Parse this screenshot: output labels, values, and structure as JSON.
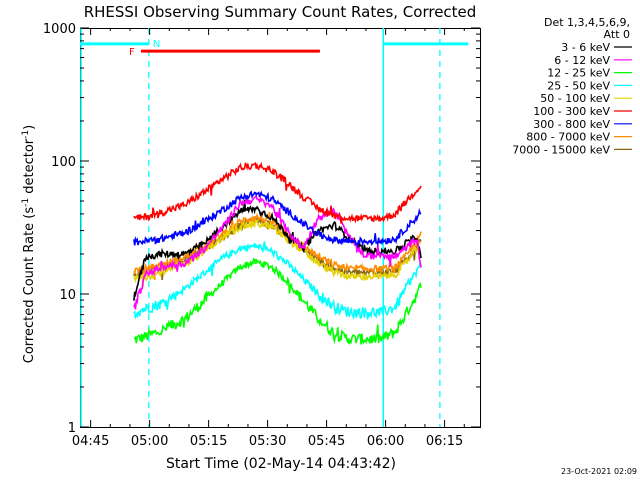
{
  "chart_data": {
    "type": "line",
    "title": "RHESSI Observing Summary Count Rates, Corrected",
    "xlabel": "Start Time (02-May-14 04:43:42)",
    "ylabel": "Corrected Count Rate (s",
    "ylabel_sup1": "-1",
    "ylabel_mid": " detector",
    "ylabel_sup2": "-1",
    "ylabel_end": ")",
    "y_scale": "log",
    "ylim": [
      1,
      1000
    ],
    "xlim_minutes_after_0445": [
      -2.7,
      99
    ],
    "x_ticks": [
      {
        "m": 0,
        "label": "04:45"
      },
      {
        "m": 15,
        "label": "05:00"
      },
      {
        "m": 30,
        "label": "05:15"
      },
      {
        "m": 45,
        "label": "05:30"
      },
      {
        "m": 60,
        "label": "05:45"
      },
      {
        "m": 75,
        "label": "06:00"
      },
      {
        "m": 90,
        "label": "06:15"
      }
    ],
    "y_ticks": [
      {
        "v": 1,
        "label": "1"
      },
      {
        "v": 10,
        "label": "10"
      },
      {
        "v": 100,
        "label": "100"
      },
      {
        "v": 1000,
        "label": "1000"
      }
    ],
    "legend_header": [
      "Det 1,3,4,5,6,9,",
      "Att 0"
    ],
    "legend_placement": "right",
    "series": [
      {
        "name": "3 - 6 keV",
        "color": "#000000",
        "x": [
          11,
          14,
          18,
          24,
          29,
          34,
          38,
          42,
          46,
          50,
          54,
          58,
          62,
          66,
          70,
          74,
          77.5,
          80,
          83,
          84
        ],
        "y": [
          9.5,
          19,
          20,
          20,
          24,
          33,
          42,
          44,
          38,
          28,
          22,
          30,
          33,
          26,
          21,
          21,
          21,
          24,
          27,
          18
        ]
      },
      {
        "name": "6 - 12 keV",
        "color": "#ff00ff",
        "x": [
          11,
          14,
          18,
          24,
          29,
          34,
          38,
          42,
          46,
          50,
          54,
          58,
          62,
          66,
          70,
          74,
          77.5,
          80,
          83,
          84
        ],
        "y": [
          7.5,
          14,
          16,
          17,
          22,
          33,
          48,
          52,
          46,
          30,
          22,
          38,
          42,
          26,
          19,
          20,
          19,
          22,
          26,
          16
        ]
      },
      {
        "name": "12 - 25 keV",
        "color": "#00ff00",
        "x": [
          11,
          14,
          18,
          24,
          29,
          34,
          38,
          42,
          46,
          50,
          54,
          58,
          62,
          66,
          70,
          74,
          77.5,
          80,
          83,
          84
        ],
        "y": [
          4.5,
          4.8,
          5.3,
          6.5,
          9.0,
          12.5,
          16,
          17.5,
          16,
          12.5,
          9.0,
          6.5,
          5.0,
          4.6,
          4.6,
          4.6,
          5.2,
          7,
          10,
          12
        ]
      },
      {
        "name": "25 - 50 keV",
        "color": "#00ffff",
        "x": [
          11,
          14,
          18,
          24,
          29,
          34,
          38,
          42,
          46,
          50,
          54,
          58,
          62,
          66,
          70,
          74,
          77.5,
          80,
          83,
          84
        ],
        "y": [
          7.2,
          7.8,
          8.5,
          11,
          14.5,
          19,
          22,
          23,
          21,
          17,
          13,
          10,
          8.0,
          7.3,
          7.3,
          7.3,
          8,
          11,
          15,
          17
        ]
      },
      {
        "name": "50 - 100 keV",
        "color": "#e6d200",
        "x": [
          11,
          14,
          18,
          24,
          29,
          34,
          38,
          42,
          46,
          50,
          54,
          58,
          62,
          66,
          70,
          74,
          77.5,
          80,
          83,
          84
        ],
        "y": [
          13,
          13.5,
          14.5,
          17,
          21,
          27,
          32,
          34,
          32,
          26,
          21,
          17,
          14.5,
          13.5,
          13.5,
          13.5,
          14,
          17,
          22,
          24
        ]
      },
      {
        "name": "100 - 300 keV",
        "color": "#ff0000",
        "x": [
          11,
          14,
          18,
          24,
          29,
          34,
          38,
          42,
          46,
          50,
          54,
          58,
          62,
          66,
          70,
          74,
          77.5,
          80,
          83,
          84
        ],
        "y": [
          37,
          38,
          41,
          47,
          59,
          75,
          89,
          93,
          85,
          69,
          54,
          44,
          39,
          37,
          37,
          37,
          40,
          49,
          61,
          66
        ]
      },
      {
        "name": "300 - 800 keV",
        "color": "#0000ff",
        "x": [
          11,
          14,
          18,
          24,
          29,
          34,
          38,
          42,
          46,
          50,
          54,
          58,
          62,
          66,
          70,
          74,
          77.5,
          80,
          83,
          84
        ],
        "y": [
          24.5,
          25,
          26,
          29,
          35,
          44,
          53,
          57,
          52,
          42,
          34,
          28,
          25.5,
          25,
          25,
          25,
          26,
          31,
          38,
          42
        ]
      },
      {
        "name": "800 - 7000 keV",
        "color": "#ff8c00",
        "x": [
          11,
          14,
          18,
          24,
          29,
          34,
          38,
          42,
          46,
          50,
          54,
          58,
          62,
          66,
          70,
          74,
          77.5,
          80,
          83,
          84
        ],
        "y": [
          15,
          15.5,
          16.5,
          19,
          23,
          29,
          35,
          38,
          35,
          29,
          23,
          19,
          16.5,
          15.5,
          15.5,
          15.5,
          16,
          19,
          25,
          28
        ]
      },
      {
        "name": "7000 - 15000 keV",
        "color": "#8b6914",
        "x": [
          11,
          14,
          18,
          24,
          29,
          34,
          38,
          42,
          46,
          50,
          54,
          58,
          62,
          66,
          70,
          74,
          77.5,
          80,
          83,
          84
        ],
        "y": [
          14,
          14.5,
          15.5,
          18,
          22,
          27,
          33,
          36,
          33,
          27,
          22,
          18,
          15.5,
          14.5,
          14.5,
          14.5,
          15,
          18,
          23,
          26
        ]
      }
    ],
    "annotations": {
      "night_label": "N",
      "night_color": "#00ffff",
      "night_start": 74.4,
      "night_end_prev": 14.8,
      "night_dashed_lines": [
        14.8,
        88.8
      ],
      "flare_label": "F",
      "flare_color": "#ff0000",
      "flare_start": 12.8,
      "flare_end": 58.3,
      "flare_level": 670,
      "night_bar_level": 760,
      "night_bars": [
        [
          -2.7,
          14.8
        ],
        [
          74.4,
          96
        ]
      ]
    },
    "timestamp": "23-Oct-2021 02:09"
  }
}
